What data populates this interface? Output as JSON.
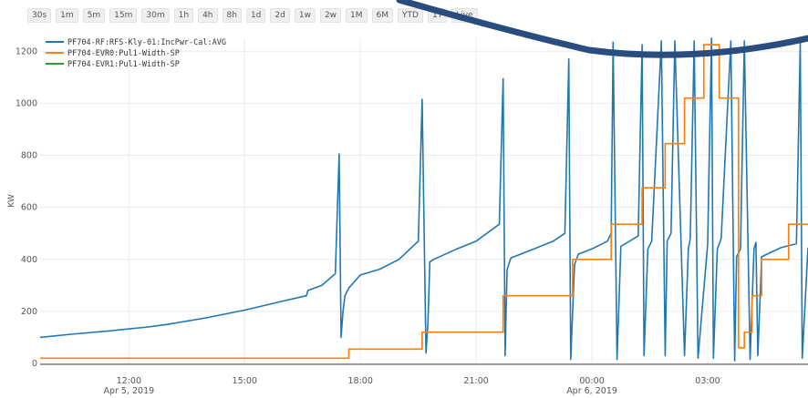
{
  "toolbar": {
    "ranges": [
      "30s",
      "1m",
      "5m",
      "15m",
      "30m",
      "1h",
      "4h",
      "8h",
      "1d",
      "2d",
      "1w",
      "2w",
      "1M",
      "6M",
      "YTD",
      "1Y",
      "Live"
    ]
  },
  "chart_data": {
    "type": "line",
    "title": "",
    "xlabel": "",
    "ylabel": "KW",
    "ylim": [
      0,
      1250
    ],
    "yticks": [
      0,
      200,
      400,
      600,
      800,
      1000,
      1200
    ],
    "grid": true,
    "legend_position": "top-left",
    "x_range_hours": [
      9.7,
      29.6
    ],
    "xticks": [
      {
        "h": 12,
        "label": "12:00",
        "date": "Apr 5, 2019"
      },
      {
        "h": 15,
        "label": "15:00",
        "date": ""
      },
      {
        "h": 18,
        "label": "18:00",
        "date": ""
      },
      {
        "h": 21,
        "label": "21:00",
        "date": ""
      },
      {
        "h": 24,
        "label": "00:00",
        "date": "Apr 6, 2019"
      },
      {
        "h": 27,
        "label": "03:00",
        "date": ""
      }
    ],
    "series": [
      {
        "name": "PF704-RF:RFS-Kly-01:IncPwr-Cal:AVG",
        "color": "#1f77b4",
        "x_hours": [
          9.7,
          10.5,
          11.5,
          12.5,
          13.0,
          14.0,
          15.0,
          16.0,
          16.6,
          16.62,
          16.64,
          17.0,
          17.35,
          17.45,
          17.5,
          17.55,
          17.6,
          17.7,
          18.0,
          18.5,
          19.0,
          19.5,
          19.6,
          19.7,
          19.75,
          19.8,
          19.9,
          20.5,
          21.0,
          21.6,
          21.7,
          21.75,
          21.8,
          21.9,
          22.5,
          23.0,
          23.3,
          23.4,
          23.45,
          23.55,
          23.65,
          24.0,
          24.4,
          24.5,
          24.55,
          24.65,
          24.75,
          25.2,
          25.3,
          25.35,
          25.45,
          25.55,
          25.8,
          25.9,
          25.95,
          26.05,
          26.15,
          26.4,
          26.5,
          26.55,
          26.65,
          26.75,
          27.0,
          27.1,
          27.15,
          27.25,
          27.35,
          27.6,
          27.7,
          27.75,
          27.85,
          27.95,
          28.1,
          28.2,
          28.25,
          28.3,
          28.4,
          28.9,
          29.3,
          29.4,
          29.45,
          29.6
        ],
        "y": [
          100,
          112,
          125,
          140,
          150,
          175,
          205,
          240,
          260,
          270,
          280,
          300,
          345,
          805,
          100,
          200,
          260,
          290,
          340,
          362,
          400,
          470,
          1015,
          40,
          150,
          390,
          400,
          440,
          470,
          535,
          1095,
          30,
          360,
          405,
          440,
          470,
          500,
          1170,
          15,
          380,
          420,
          440,
          470,
          500,
          1235,
          15,
          450,
          490,
          1225,
          30,
          440,
          470,
          1240,
          30,
          470,
          500,
          1240,
          30,
          440,
          480,
          1240,
          20,
          460,
          1250,
          20,
          440,
          480,
          1240,
          10,
          410,
          440,
          1240,
          15,
          440,
          465,
          30,
          410,
          445,
          460,
          1230,
          20,
          445
        ]
      },
      {
        "name": "PF704-EVR0:Pul1-Width-SP",
        "color": "#ff7f0e",
        "steps": [
          {
            "from": 9.7,
            "to": 17.7,
            "value": 20
          },
          {
            "from": 17.7,
            "to": 19.6,
            "value": 55
          },
          {
            "from": 19.6,
            "to": 21.7,
            "value": 120
          },
          {
            "from": 21.7,
            "to": 23.5,
            "value": 260
          },
          {
            "from": 23.5,
            "to": 24.5,
            "value": 400
          },
          {
            "from": 24.5,
            "to": 25.3,
            "value": 535
          },
          {
            "from": 25.3,
            "to": 25.9,
            "value": 675
          },
          {
            "from": 25.9,
            "to": 26.4,
            "value": 845
          },
          {
            "from": 26.4,
            "to": 26.9,
            "value": 1020
          },
          {
            "from": 26.9,
            "to": 27.3,
            "value": 1225
          },
          {
            "from": 27.3,
            "to": 27.8,
            "value": 1020
          },
          {
            "from": 27.8,
            "to": 27.95,
            "value": 60
          },
          {
            "from": 27.95,
            "to": 28.15,
            "value": 120
          },
          {
            "from": 28.15,
            "to": 28.4,
            "value": 260
          },
          {
            "from": 28.4,
            "to": 29.1,
            "value": 400
          },
          {
            "from": 29.1,
            "to": 29.6,
            "value": 535
          }
        ]
      },
      {
        "name": "PF704-EVR1:Pul1-Width-SP",
        "color": "#2ca02c",
        "steps": []
      }
    ]
  }
}
